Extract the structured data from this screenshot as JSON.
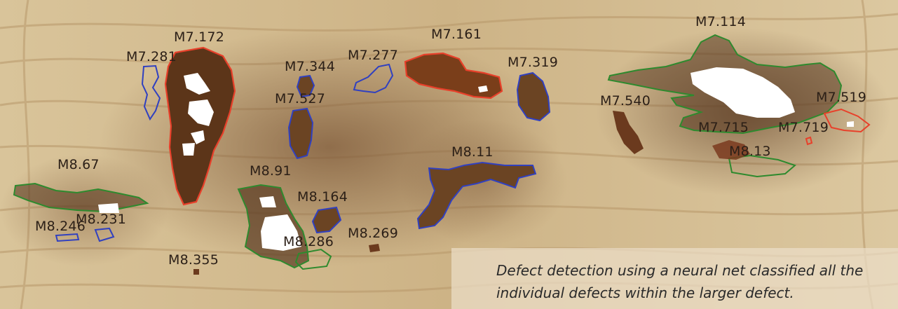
{
  "caption": "Defect detection using a neural net classified all the individual defects within the larger defect.",
  "outline_colors": {
    "red": "#e8402a",
    "blue": "#3040c0",
    "green": "#2e8a2e"
  },
  "labels": {
    "m7_172": "M7.172",
    "m7_281": "M7.281",
    "m7_344": "M7.344",
    "m7_277": "M7.277",
    "m7_161": "M7.161",
    "m7_319": "M7.319",
    "m7_114": "M7.114",
    "m7_527": "M7.527",
    "m7_540": "M7.540",
    "m7_519": "M7.519",
    "m7_715": "M7.715",
    "m7_719": "M7.719",
    "m8_13": "M8.13",
    "m8_11": "M8.11",
    "m8_67": "M8.67",
    "m8_91": "M8.91",
    "m8_164": "M8.164",
    "m8_231": "M8.231",
    "m8_246": "M8.246",
    "m8_286": "M8.286",
    "m8_269": "M8.269",
    "m8_355": "M8.355"
  }
}
